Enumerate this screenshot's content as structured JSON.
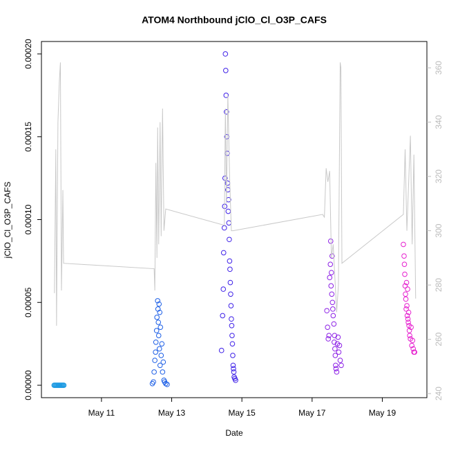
{
  "chart_data": {
    "type": "scatter",
    "title": "ATOM4 Northbound jClO_Cl_O3P_CAFS",
    "xlabel": "Date",
    "ylabel": "jClO_Cl_O3P_CAFS",
    "xlim": [
      9.29,
      20.27
    ],
    "xticks": [
      {
        "value": 11,
        "label": "May 11"
      },
      {
        "value": 13,
        "label": "May 13"
      },
      {
        "value": 15,
        "label": "May 15"
      },
      {
        "value": 17,
        "label": "May 17"
      },
      {
        "value": 19,
        "label": "May 19"
      }
    ],
    "ylim": [
      -7.5e-06,
      0.0002075
    ],
    "yticks": [
      {
        "value": 0,
        "label": "0.00000"
      },
      {
        "value": 5e-05,
        "label": "0.00005"
      },
      {
        "value": 0.0001,
        "label": "0.00010"
      },
      {
        "value": 0.00015,
        "label": "0.00015"
      },
      {
        "value": 0.0002,
        "label": "0.00020"
      }
    ],
    "y2lim": [
      238.5,
      369.7
    ],
    "y2ticks": [
      240,
      260,
      280,
      300,
      320,
      340,
      360
    ],
    "series": [
      {
        "color": "#1f9be3",
        "x": [
          9.65,
          9.67,
          9.69,
          9.71,
          9.73,
          9.75,
          9.77,
          9.79,
          9.81,
          9.83,
          9.85,
          9.87,
          9.89,
          9.91,
          9.93
        ],
        "values": [
          0,
          0,
          0,
          0,
          0,
          0,
          0,
          0,
          0,
          0,
          0,
          0,
          0,
          0,
          0
        ]
      },
      {
        "color": "#1a5de6",
        "x": [
          12.45,
          12.48,
          12.5,
          12.52,
          12.54,
          12.55,
          12.57,
          12.58,
          12.6,
          12.61,
          12.62,
          12.63,
          12.64,
          12.65,
          12.66,
          12.67,
          12.68,
          12.7,
          12.72,
          12.74,
          12.76,
          12.78,
          12.8,
          12.83,
          12.87
        ],
        "values": [
          1e-06,
          2e-06,
          8e-06,
          1.5e-05,
          2e-05,
          2.6e-05,
          3.3e-05,
          4.1e-05,
          5.1e-05,
          4.6e-05,
          3.8e-05,
          3e-05,
          4.9e-05,
          2.2e-05,
          4.4e-05,
          1.2e-05,
          3.5e-05,
          1.8e-05,
          2.5e-05,
          8e-06,
          1.4e-05,
          3e-06,
          2e-06,
          1e-06,
          5e-07
        ]
      },
      {
        "color": "#3d1fe8",
        "x": [
          14.42,
          14.45,
          14.47,
          14.48,
          14.5,
          14.51,
          14.52,
          14.53,
          14.54,
          14.55,
          14.56,
          14.57,
          14.58,
          14.59,
          14.6,
          14.61,
          14.62,
          14.63,
          14.64,
          14.65,
          14.66,
          14.67,
          14.68,
          14.69,
          14.7,
          14.71,
          14.72,
          14.73,
          14.74,
          14.75,
          14.76,
          14.77,
          14.78,
          14.8,
          14.82
        ],
        "values": [
          2.1e-05,
          4.2e-05,
          5.8e-05,
          8e-05,
          9.5e-05,
          0.000108,
          0.000125,
          0.0002,
          0.00019,
          0.000175,
          0.000165,
          0.00015,
          0.00014,
          0.000122,
          0.000118,
          0.000105,
          0.000112,
          9.8e-05,
          8.8e-05,
          7.5e-05,
          7e-05,
          6.2e-05,
          5.5e-05,
          4.8e-05,
          4e-05,
          3.6e-05,
          3e-05,
          2.5e-05,
          1.8e-05,
          1.2e-05,
          1e-05,
          8e-06,
          5e-06,
          4e-06,
          3e-06
        ]
      },
      {
        "color": "#8c1fe6",
        "x": [
          17.42,
          17.44,
          17.46,
          17.48,
          17.5,
          17.52,
          17.53,
          17.54,
          17.55,
          17.56,
          17.57,
          17.58,
          17.59,
          17.6,
          17.62,
          17.63,
          17.64,
          17.65,
          17.66,
          17.67,
          17.68,
          17.7,
          17.72,
          17.74,
          17.76,
          17.78,
          17.8,
          17.83
        ],
        "values": [
          4.5e-05,
          3.5e-05,
          2.8e-05,
          3e-05,
          6.5e-05,
          7.3e-05,
          8.7e-05,
          6e-05,
          6.8e-05,
          5.5e-05,
          7.8e-05,
          5e-05,
          4.6e-05,
          4.2e-05,
          3.7e-05,
          2.6e-05,
          3e-05,
          2.2e-05,
          1.8e-05,
          1.2e-05,
          1e-05,
          8e-06,
          2.5e-05,
          2.9e-05,
          2e-05,
          2.4e-05,
          1.5e-05,
          1.2e-05
        ]
      },
      {
        "color": "#e61fcf",
        "x": [
          19.6,
          19.62,
          19.63,
          19.64,
          19.65,
          19.66,
          19.67,
          19.68,
          19.69,
          19.7,
          19.71,
          19.72,
          19.73,
          19.74,
          19.75,
          19.76,
          19.77,
          19.78,
          19.8,
          19.82,
          19.84,
          19.86,
          19.88,
          19.9,
          19.92
        ],
        "values": [
          8.5e-05,
          7.8e-05,
          7.3e-05,
          6.7e-05,
          6e-05,
          5.5e-05,
          5.2e-05,
          4.6e-05,
          6.2e-05,
          4.8e-05,
          4.2e-05,
          5.8e-05,
          4e-05,
          3.8e-05,
          4.4e-05,
          3.6e-05,
          3.3e-05,
          3e-05,
          2.8e-05,
          3.5e-05,
          2.4e-05,
          2.7e-05,
          2.2e-05,
          2e-05,
          2e-05
        ]
      },
      {
        "color": "#c8c8c8",
        "axis": "y2",
        "kind": "line",
        "x": [
          9.66,
          9.7,
          9.72,
          9.76,
          9.8,
          9.83,
          9.86,
          9.9,
          9.92,
          12.5,
          12.52,
          12.55,
          12.58,
          12.6,
          12.63,
          12.67,
          12.7,
          12.74,
          12.78,
          12.83,
          14.5,
          14.53,
          14.56,
          14.6,
          14.65,
          14.7,
          14.75,
          17.3,
          17.35,
          17.4,
          17.45,
          17.5,
          17.55,
          17.6,
          17.7,
          17.75,
          17.8,
          17.82,
          17.85,
          19.6,
          19.65,
          19.7,
          19.8,
          19.85,
          19.9,
          19.95
        ],
        "values": [
          277,
          330,
          265,
          340,
          355,
          362,
          278,
          315,
          288,
          286,
          278,
          325,
          290,
          338,
          295,
          340,
          298,
          345,
          300,
          308,
          302,
          345,
          310,
          350,
          320,
          300,
          300,
          306,
          305,
          323,
          318,
          322,
          290,
          295,
          270,
          280,
          362,
          360,
          288,
          306,
          330,
          300,
          335,
          295,
          328,
          275
        ]
      }
    ]
  }
}
